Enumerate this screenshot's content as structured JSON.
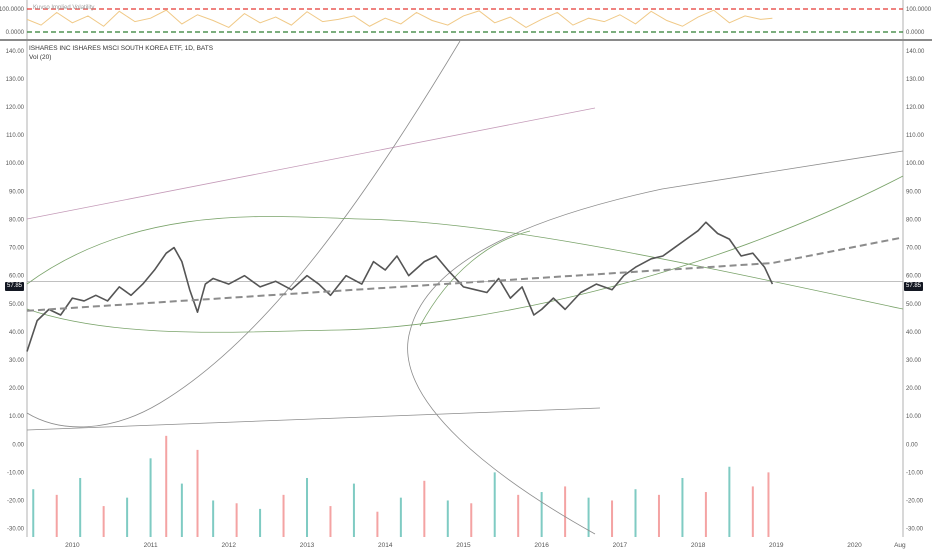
{
  "indicator": {
    "label": "Kuvso Implied Volatility",
    "levels": [
      "100.0000",
      "0.0000"
    ]
  },
  "symbol": {
    "title": "ISHARES INC ISHARES MSCI SOUTH KOREA ETF, 1D, BATS",
    "volume_label": "Vol (20)",
    "last_price": "57.85"
  },
  "colors": {
    "price": "#555555",
    "trend": "#8c8c8c",
    "green_curve": "#7aa36a",
    "purple_curve": "#c49ab8",
    "volatility": "#f0c987",
    "red_level": "#e53935",
    "green_level": "#2e7d32",
    "vol_up": "#7fcbc3",
    "vol_down": "#f4a3a3"
  },
  "chart_data": {
    "type": "line",
    "series": [
      {
        "x": [
          2009.42,
          2009.55,
          2009.7,
          2009.85,
          2010.0,
          2010.15,
          2010.3,
          2010.45,
          2010.6,
          2010.75,
          2010.9,
          2011.05,
          2011.2,
          2011.3,
          2011.4,
          2011.5,
          2011.6,
          2011.7,
          2011.8,
          2012.0,
          2012.2,
          2012.4,
          2012.6,
          2012.8,
          2013.0,
          2013.15,
          2013.3,
          2013.5,
          2013.7,
          2013.85,
          2014.0,
          2014.15,
          2014.3,
          2014.5,
          2014.65,
          2014.8,
          2015.0,
          2015.15,
          2015.3,
          2015.45,
          2015.6,
          2015.75,
          2015.9,
          2016.0,
          2016.15,
          2016.3,
          2016.5,
          2016.7,
          2016.9,
          2017.05,
          2017.2,
          2017.4,
          2017.55,
          2017.7,
          2017.85,
          2018.0,
          2018.1,
          2018.25,
          2018.4,
          2018.55,
          2018.7,
          2018.85,
          2018.95
        ],
        "y": [
          33,
          44,
          48,
          46,
          52,
          51,
          53,
          51,
          56,
          53,
          57,
          62,
          68,
          70,
          65,
          55,
          47,
          57,
          59,
          57,
          60,
          56,
          58,
          55,
          60,
          57,
          53,
          60,
          57,
          65,
          62,
          67,
          60,
          65,
          67,
          62,
          56,
          55,
          54,
          59,
          52,
          56,
          46,
          48,
          52,
          48,
          54,
          57,
          55,
          60,
          63,
          66,
          67,
          70,
          73,
          76,
          79,
          75,
          73,
          67,
          68,
          63,
          57
        ]
      }
    ],
    "volatility": {
      "x": [
        2009.42,
        2009.6,
        2009.8,
        2010.0,
        2010.2,
        2010.4,
        2010.6,
        2010.8,
        2011.0,
        2011.2,
        2011.4,
        2011.6,
        2011.8,
        2012.0,
        2012.2,
        2012.4,
        2012.6,
        2012.8,
        2013.0,
        2013.2,
        2013.4,
        2013.6,
        2013.8,
        2014.0,
        2014.2,
        2014.4,
        2014.6,
        2014.8,
        2015.0,
        2015.2,
        2015.4,
        2015.6,
        2015.8,
        2016.0,
        2016.2,
        2016.4,
        2016.6,
        2016.8,
        2017.0,
        2017.2,
        2017.4,
        2017.6,
        2017.8,
        2018.0,
        2018.2,
        2018.4,
        2018.6,
        2018.8,
        2018.95
      ],
      "y": [
        55,
        30,
        85,
        40,
        70,
        25,
        90,
        45,
        60,
        95,
        35,
        75,
        50,
        20,
        80,
        40,
        65,
        30,
        88,
        45,
        55,
        70,
        25,
        60,
        35,
        85,
        50,
        30,
        70,
        92,
        40,
        65,
        20,
        55,
        85,
        30,
        60,
        45,
        75,
        35,
        90,
        50,
        25,
        65,
        95,
        40,
        70,
        55,
        60
      ],
      "ylim": [
        0,
        100
      ]
    },
    "volume": {
      "x": [
        2009.5,
        2009.8,
        2010.1,
        2010.4,
        2010.7,
        2011.0,
        2011.2,
        2011.4,
        2011.6,
        2011.8,
        2012.1,
        2012.4,
        2012.7,
        2013.0,
        2013.3,
        2013.6,
        2013.9,
        2014.2,
        2014.5,
        2014.8,
        2015.1,
        2015.4,
        2015.7,
        2016.0,
        2016.3,
        2016.6,
        2016.9,
        2017.2,
        2017.5,
        2017.8,
        2018.1,
        2018.4,
        2018.7,
        2018.9
      ],
      "y": [
        -16,
        -18,
        -12,
        -22,
        -19,
        -5,
        3,
        -14,
        -2,
        -20,
        -21,
        -23,
        -18,
        -12,
        -22,
        -14,
        -24,
        -19,
        -13,
        -20,
        -21,
        -10,
        -18,
        -17,
        -15,
        -19,
        -20,
        -16,
        -18,
        -12,
        -17,
        -8,
        -15,
        -10
      ],
      "up": [
        true,
        false,
        true,
        false,
        true,
        true,
        false,
        true,
        false,
        true,
        false,
        true,
        false,
        true,
        false,
        true,
        false,
        true,
        false,
        true,
        false,
        true,
        false,
        true,
        false,
        true,
        false,
        true,
        false,
        true,
        false,
        true,
        false,
        false
      ]
    },
    "trend": {
      "x": [
        2009.42,
        2018.95,
        2020.6
      ],
      "y": [
        47.5,
        64.5,
        73.5
      ]
    },
    "price_axis": {
      "ylim": [
        -33,
        143.5
      ],
      "ticks": [
        "140.00",
        "130.00",
        "120.00",
        "110.00",
        "100.00",
        "90.00",
        "80.00",
        "70.00",
        "60.00",
        "50.00",
        "40.00",
        "30.00",
        "20.00",
        "10.00",
        "0.00",
        "-10.00",
        "-20.00",
        "-30.00"
      ]
    },
    "time_axis": {
      "xlim": [
        2009.42,
        2020.62
      ],
      "ticks": [
        {
          "label": "2010",
          "x": 2010.0
        },
        {
          "label": "2011",
          "x": 2011.0
        },
        {
          "label": "2012",
          "x": 2012.0
        },
        {
          "label": "2013",
          "x": 2013.0
        },
        {
          "label": "2014",
          "x": 2014.0
        },
        {
          "label": "2015",
          "x": 2015.0
        },
        {
          "label": "2016",
          "x": 2016.0
        },
        {
          "label": "2017",
          "x": 2017.0
        },
        {
          "label": "2018",
          "x": 2018.0
        },
        {
          "label": "2019",
          "x": 2019.0
        },
        {
          "label": "2020",
          "x": 2020.0
        },
        {
          "label": "Aug",
          "x": 2020.58
        }
      ]
    }
  }
}
